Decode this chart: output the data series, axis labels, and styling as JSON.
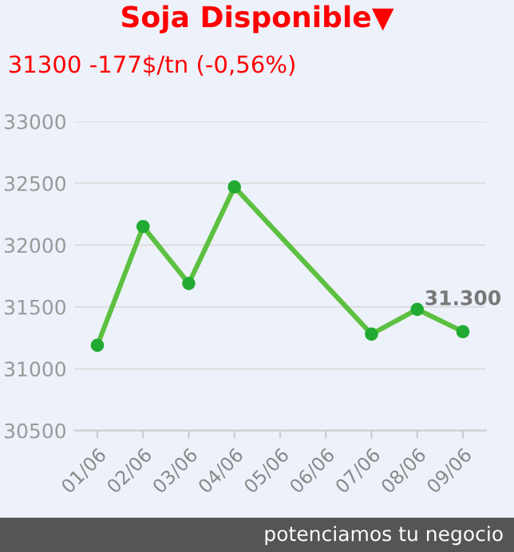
{
  "chart_data": {
    "type": "line",
    "title": "Soja Disponible▼",
    "subtitle": "31300 -177$/tn (-0,56%)",
    "categories": [
      "01/06",
      "02/06",
      "03/06",
      "04/06",
      "05/06",
      "06/06",
      "07/06",
      "08/06",
      "09/06"
    ],
    "series": [
      {
        "color": "#5cc040",
        "values": [
          31190,
          32150,
          31690,
          32470,
          null,
          null,
          31280,
          31480,
          31300
        ],
        "value_labels": [
          null,
          null,
          null,
          null,
          null,
          null,
          null,
          null,
          "31.300"
        ]
      }
    ],
    "ylim": [
      30500,
      33000
    ],
    "yticks": [
      30500,
      31000,
      31500,
      32000,
      32500,
      33000
    ],
    "grid": "y",
    "marker": "circle",
    "line_style": "solid",
    "legend": false,
    "annotations": [
      "potenciamos tu negocio"
    ]
  }
}
